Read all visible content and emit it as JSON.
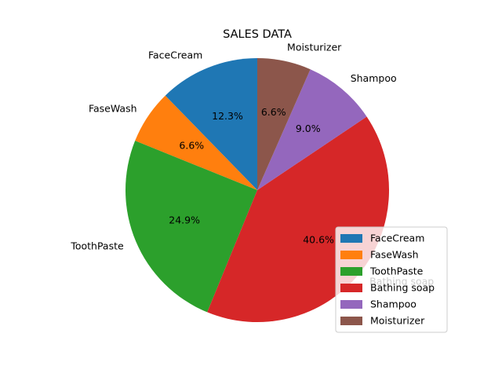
{
  "chart_data": {
    "type": "pie",
    "title": "SALES DATA",
    "categories": [
      "FaceCream",
      "FaseWash",
      "ToothPaste",
      "Bathing soap",
      "Shampoo",
      "Moisturizer"
    ],
    "values": [
      12.3,
      6.6,
      24.9,
      40.6,
      9.0,
      6.6
    ],
    "percent_labels": [
      "12.3%",
      "6.6%",
      "24.9%",
      "40.6%",
      "9.0%",
      "6.6%"
    ],
    "colors": [
      "#1f77b4",
      "#ff7f0e",
      "#2ca02c",
      "#d62728",
      "#9467bd",
      "#8c564b"
    ],
    "start_angle_deg": 90,
    "direction": "counterclockwise",
    "legend": {
      "placement": "lower-right",
      "entries": [
        "FaceCream",
        "FaseWash",
        "ToothPaste",
        "Bathing soap",
        "Shampoo",
        "Moisturizer"
      ]
    }
  }
}
